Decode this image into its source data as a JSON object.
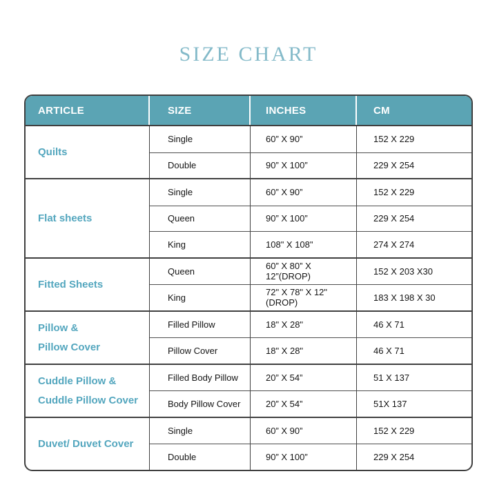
{
  "title": "SIZE CHART",
  "colors": {
    "header_bg": "#5ba4b4",
    "article_text": "#53a6be",
    "title_text": "#84bac9",
    "body_text": "#141414",
    "grid_line": "#3f3f3f"
  },
  "table": {
    "headers": [
      "ARTICLE",
      "SIZE",
      "INCHES",
      "CM"
    ],
    "groups": [
      {
        "article_lines": [
          "Quilts"
        ],
        "rows": [
          {
            "size": "Single",
            "inches": "60” X 90”",
            "cm": "152 X 229"
          },
          {
            "size": "Double",
            "inches": "90” X 100”",
            "cm": "229 X 254"
          }
        ]
      },
      {
        "article_lines": [
          "Flat sheets"
        ],
        "rows": [
          {
            "size": "Single",
            "inches": "60” X 90”",
            "cm": "152 X 229"
          },
          {
            "size": "Queen",
            "inches": "90” X 100”",
            "cm": "229 X 254"
          },
          {
            "size": "King",
            "inches": "108\" X 108\"",
            "cm": "274 X 274"
          }
        ]
      },
      {
        "article_lines": [
          "Fitted Sheets"
        ],
        "rows": [
          {
            "size": "Queen",
            "inches": "60” X 80” X 12”(DROP)",
            "cm": "152 X 203 X30"
          },
          {
            "size": "King",
            "inches": "72\" X 78\" X 12\"(DROP)",
            "cm": "183 X 198 X 30"
          }
        ]
      },
      {
        "article_lines": [
          "Pillow &",
          "Pillow Cover"
        ],
        "rows": [
          {
            "size": "Filled Pillow",
            "inches": "18\" X 28\"",
            "cm": "46 X 71"
          },
          {
            "size": "Pillow Cover",
            "inches": "18\" X 28\"",
            "cm": "46 X 71"
          }
        ]
      },
      {
        "article_lines": [
          "Cuddle Pillow &",
          "Cuddle Pillow Cover"
        ],
        "rows": [
          {
            "size": "Filled Body Pillow",
            "inches": "20” X 54”",
            "cm": "51 X 137"
          },
          {
            "size": "Body Pillow Cover",
            "inches": "20” X 54”",
            "cm": "51X 137"
          }
        ]
      },
      {
        "article_lines": [
          "Duvet/ Duvet Cover"
        ],
        "rows": [
          {
            "size": "Single",
            "inches": "60” X 90”",
            "cm": "152 X 229"
          },
          {
            "size": "Double",
            "inches": "90” X 100”",
            "cm": "229 X 254"
          }
        ]
      }
    ]
  }
}
